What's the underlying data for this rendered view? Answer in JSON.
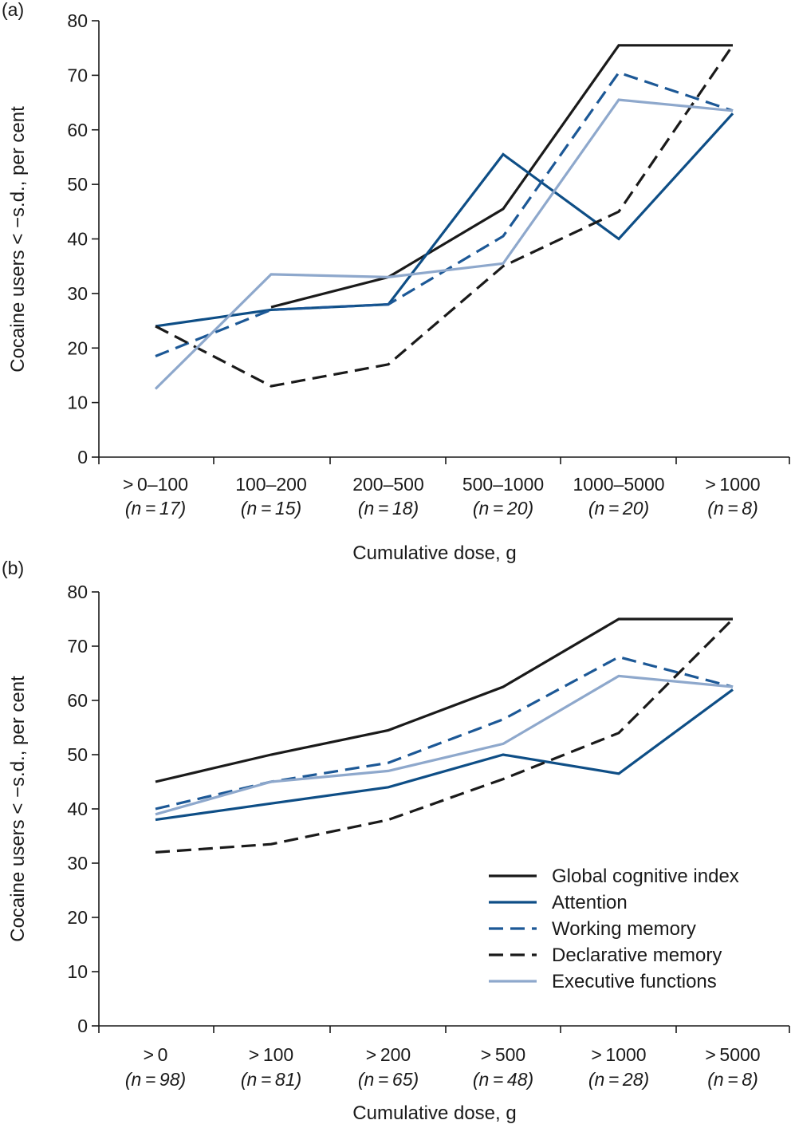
{
  "colors": {
    "global": "#1a1a1a",
    "attention": "#0e4e86",
    "working": "#1c5896",
    "declarative": "#1a1a1a",
    "executive": "#8ea8cc"
  },
  "legend": [
    {
      "key": "global",
      "label": "Global cognitive index",
      "style": "solid"
    },
    {
      "key": "attention",
      "label": "Attention",
      "style": "solid"
    },
    {
      "key": "working",
      "label": "Working memory",
      "style": "dashed"
    },
    {
      "key": "declarative",
      "label": "Declarative memory",
      "style": "dashed"
    },
    {
      "key": "executive",
      "label": "Executive functions",
      "style": "solid"
    }
  ],
  "chart_data": [
    {
      "type": "line",
      "panel_label": "(a)",
      "xlabel": "Cumulative dose, g",
      "ylabel": "Cocaine users < −s.d., per cent",
      "ylim": [
        0,
        80
      ],
      "yticks": [
        "0",
        "10",
        "20",
        "30",
        "40",
        "50",
        "60",
        "70",
        "80"
      ],
      "categories": [
        {
          "label": "> 0–100",
          "n": "(n = 17)"
        },
        {
          "label": "100–200",
          "n": "(n = 15)"
        },
        {
          "label": "200–500",
          "n": "(n = 18)"
        },
        {
          "label": "500–1000",
          "n": "(n = 20)"
        },
        {
          "label": "1000–5000",
          "n": "(n = 20)"
        },
        {
          "label": "> 1000",
          "n": "(n = 8)"
        }
      ],
      "series": [
        {
          "key": "global",
          "name": "Global cognitive index",
          "style": "solid",
          "values": [
            null,
            27.5,
            33,
            45.5,
            75.5,
            75.5
          ]
        },
        {
          "key": "attention",
          "name": "Attention",
          "style": "solid",
          "values": [
            24,
            27,
            28,
            55.5,
            40,
            63
          ]
        },
        {
          "key": "working",
          "name": "Working memory",
          "style": "dashed",
          "values": [
            18.5,
            27,
            28,
            40.5,
            70.5,
            63.5
          ]
        },
        {
          "key": "declarative",
          "name": "Declarative memory",
          "style": "dashed",
          "values": [
            24,
            13,
            17,
            35,
            45,
            75.5
          ]
        },
        {
          "key": "executive",
          "name": "Executive functions",
          "style": "solid",
          "values": [
            12.5,
            33.5,
            33,
            35.5,
            65.5,
            63.5
          ]
        }
      ]
    },
    {
      "type": "line",
      "panel_label": "(b)",
      "xlabel": "Cumulative dose, g",
      "ylabel": "Cocaine users < −s.d., per cent",
      "ylim": [
        0,
        80
      ],
      "yticks": [
        "0",
        "10",
        "20",
        "30",
        "40",
        "50",
        "60",
        "70",
        "80"
      ],
      "categories": [
        {
          "label": "> 0",
          "n": "(n = 98)"
        },
        {
          "label": "> 100",
          "n": "(n = 81)"
        },
        {
          "label": "> 200",
          "n": "(n = 65)"
        },
        {
          "label": "> 500",
          "n": "(n = 48)"
        },
        {
          "label": "> 1000",
          "n": "(n = 28)"
        },
        {
          "label": "> 5000",
          "n": "(n = 8)"
        }
      ],
      "series": [
        {
          "key": "global",
          "name": "Global cognitive index",
          "style": "solid",
          "values": [
            45,
            50,
            54.5,
            62.5,
            75,
            75
          ]
        },
        {
          "key": "attention",
          "name": "Attention",
          "style": "solid",
          "values": [
            38,
            41,
            44,
            50,
            46.5,
            62
          ]
        },
        {
          "key": "working",
          "name": "Working memory",
          "style": "dashed",
          "values": [
            40,
            45,
            48.5,
            56.5,
            68,
            62.5
          ]
        },
        {
          "key": "declarative",
          "name": "Declarative memory",
          "style": "dashed",
          "values": [
            32,
            33.5,
            38,
            45.5,
            54,
            75
          ]
        },
        {
          "key": "executive",
          "name": "Executive functions",
          "style": "solid",
          "values": [
            39,
            45,
            47,
            52,
            64.5,
            62.5
          ]
        }
      ]
    }
  ]
}
